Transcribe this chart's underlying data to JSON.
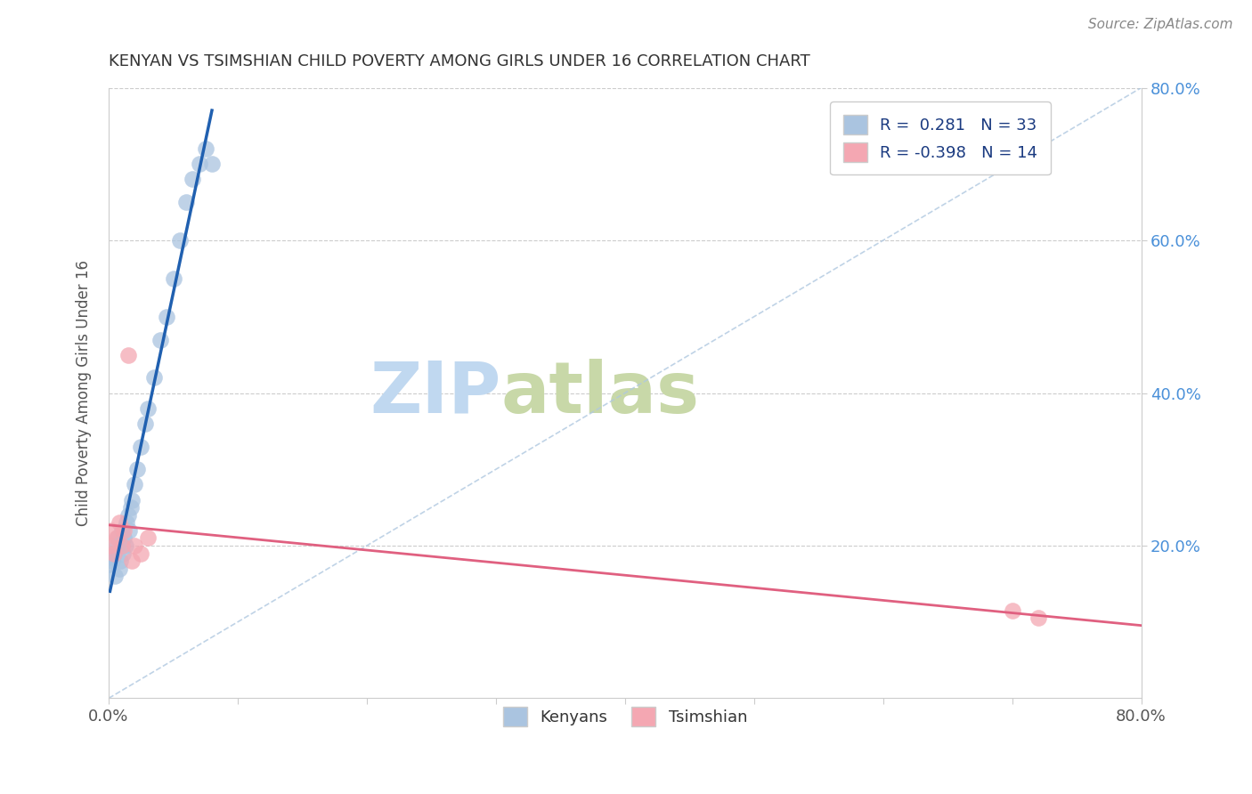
{
  "title": "KENYAN VS TSIMSHIAN CHILD POVERTY AMONG GIRLS UNDER 16 CORRELATION CHART",
  "source": "Source: ZipAtlas.com",
  "ylabel": "Child Poverty Among Girls Under 16",
  "xlim": [
    0.0,
    0.8
  ],
  "ylim": [
    0.0,
    0.8
  ],
  "xtick_vals": [
    0.0,
    0.1,
    0.2,
    0.3,
    0.4,
    0.5,
    0.6,
    0.7,
    0.8
  ],
  "xtick_labels": [
    "0.0%",
    "",
    "",
    "",
    "",
    "",
    "",
    "",
    "80.0%"
  ],
  "ytick_vals": [
    0.2,
    0.4,
    0.6,
    0.8
  ],
  "ytick_labels_right": [
    "20.0%",
    "40.0%",
    "60.0%",
    "80.0%"
  ],
  "kenyan_R": "0.281",
  "kenyan_N": "33",
  "tsimshian_R": "-0.398",
  "tsimshian_N": "14",
  "kenyan_color": "#aac4e0",
  "tsimshian_color": "#f4a7b2",
  "kenyan_line_color": "#2060b0",
  "tsimshian_line_color": "#e06080",
  "diagonal_color": "#b0c8e0",
  "watermark_zip_color": "#c8ddf0",
  "watermark_atlas_color": "#d8e8c0",
  "background_color": "#ffffff",
  "kenyan_x": [
    0.001,
    0.002,
    0.003,
    0.004,
    0.005,
    0.006,
    0.007,
    0.008,
    0.009,
    0.01,
    0.011,
    0.012,
    0.013,
    0.014,
    0.015,
    0.016,
    0.017,
    0.018,
    0.02,
    0.022,
    0.025,
    0.028,
    0.03,
    0.035,
    0.04,
    0.045,
    0.05,
    0.055,
    0.06,
    0.065,
    0.07,
    0.075,
    0.08
  ],
  "kenyan_y": [
    0.175,
    0.185,
    0.18,
    0.19,
    0.16,
    0.2,
    0.21,
    0.17,
    0.18,
    0.22,
    0.19,
    0.21,
    0.2,
    0.23,
    0.24,
    0.22,
    0.25,
    0.26,
    0.28,
    0.3,
    0.33,
    0.36,
    0.38,
    0.42,
    0.47,
    0.5,
    0.55,
    0.6,
    0.65,
    0.68,
    0.7,
    0.72,
    0.7
  ],
  "tsimshian_x": [
    0.001,
    0.002,
    0.004,
    0.006,
    0.008,
    0.01,
    0.012,
    0.015,
    0.018,
    0.02,
    0.025,
    0.03,
    0.7,
    0.72
  ],
  "tsimshian_y": [
    0.2,
    0.22,
    0.19,
    0.21,
    0.23,
    0.2,
    0.22,
    0.45,
    0.18,
    0.2,
    0.19,
    0.21,
    0.115,
    0.105
  ]
}
